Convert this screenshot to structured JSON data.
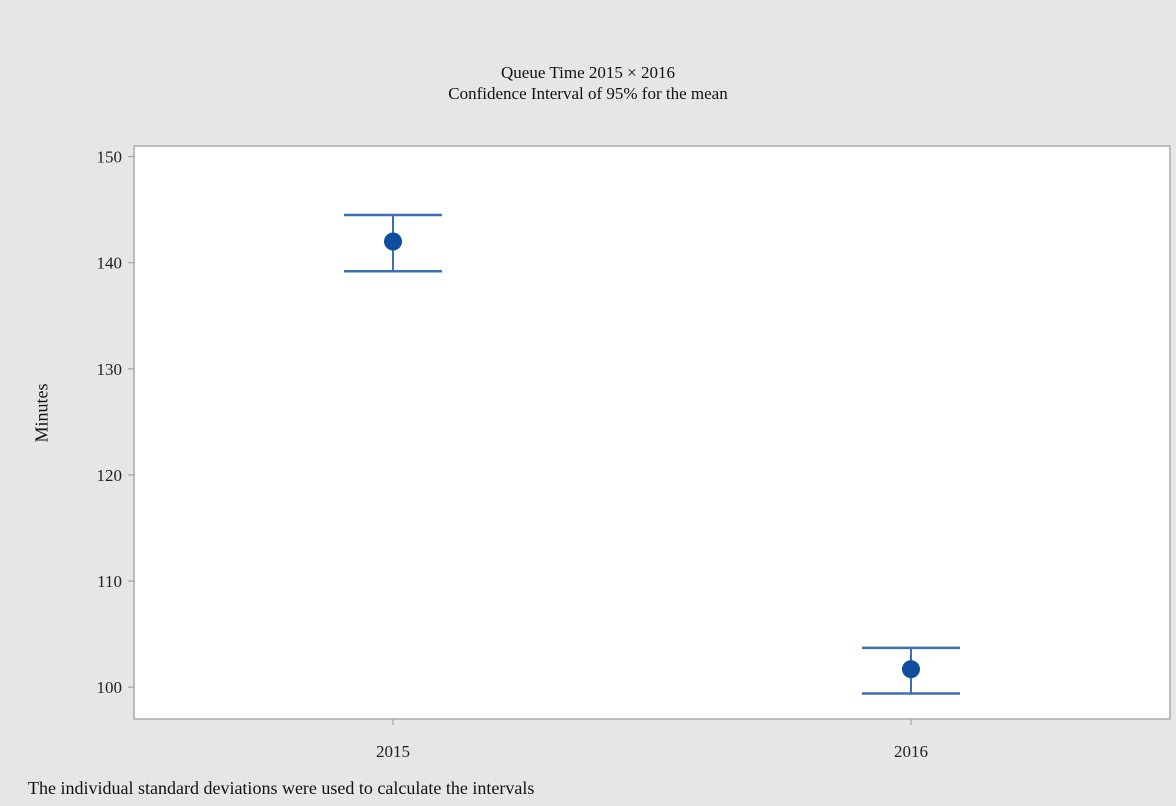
{
  "chart_data": {
    "type": "scatter",
    "title": "Queue Time 2015 × 2016",
    "subtitle": "Confidence Interval of 95% for the mean",
    "ylabel": "Minutes",
    "xlabel": "",
    "categories": [
      "2015",
      "2016"
    ],
    "series": [
      {
        "means": [
          142.0,
          101.7
        ],
        "lower": [
          139.2,
          99.4
        ],
        "upper": [
          144.5,
          103.7
        ]
      }
    ],
    "ylim": [
      97,
      151
    ],
    "yticks": [
      100,
      110,
      120,
      130,
      140,
      150
    ],
    "grid": false,
    "legend": "none",
    "note": "The individual standard deviations were used to calculate the intervals",
    "colors": {
      "marker": "#0d4f9c",
      "interval": "#3a70b8",
      "frame": "#bcbcbc",
      "background": "#e6e6e6",
      "plot_background": "#ffffff"
    }
  }
}
